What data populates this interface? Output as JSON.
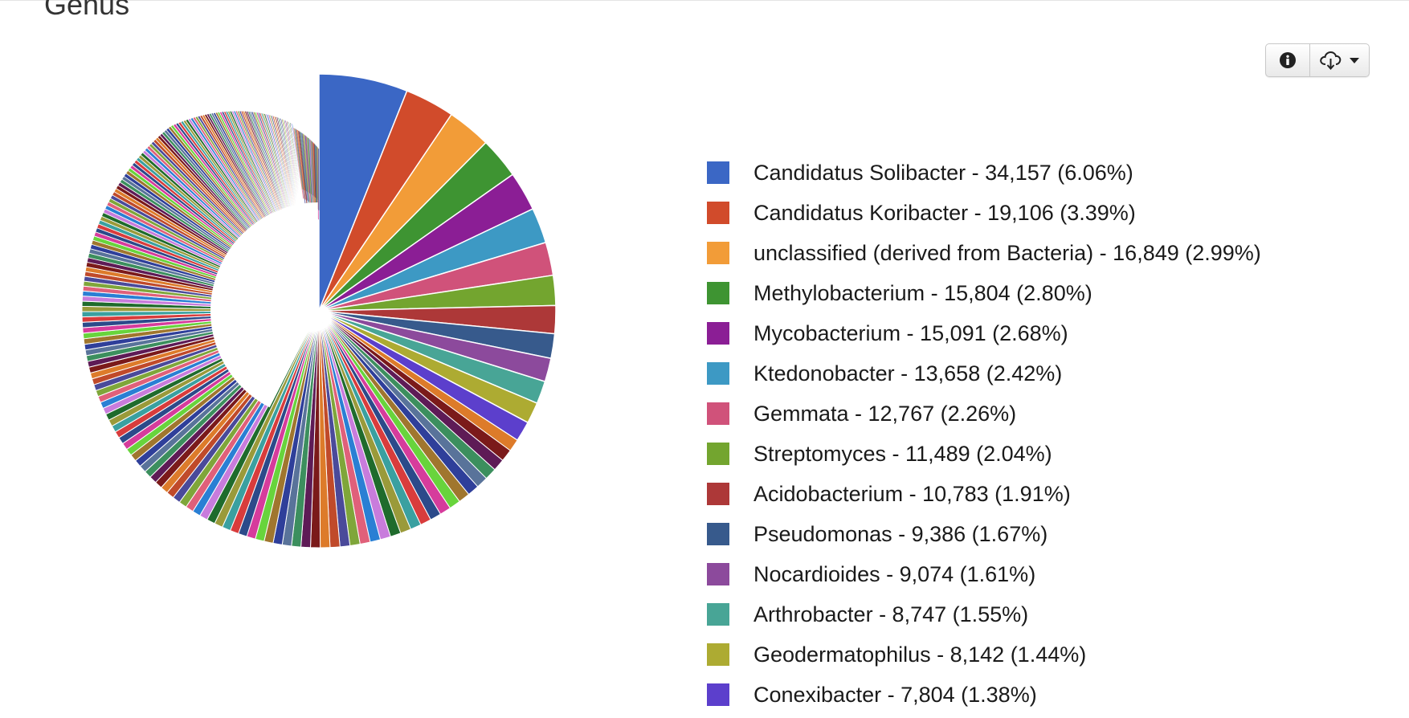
{
  "section": {
    "title": "Genus"
  },
  "toolbar": {
    "info_icon": "info-circle-icon",
    "download_icon": "cloud-download-icon",
    "caret_icon": "caret-down-icon"
  },
  "chart_data": {
    "type": "pie",
    "title": "Genus",
    "legend_position": "right",
    "start_angle": "12 o'clock, clockwise",
    "slices": [
      {
        "label": "Candidatus Solibacter - 34,157 (6.06%)",
        "name": "Candidatus Solibacter",
        "value": 34157,
        "percent": 6.06,
        "color": "#3b67c5"
      },
      {
        "label": "Candidatus Koribacter - 19,106 (3.39%)",
        "name": "Candidatus Koribacter",
        "value": 19106,
        "percent": 3.39,
        "color": "#d14b2b"
      },
      {
        "label": "unclassified (derived from Bacteria) - 16,849 (2.99%)",
        "name": "unclassified (derived from Bacteria)",
        "value": 16849,
        "percent": 2.99,
        "color": "#f29c38"
      },
      {
        "label": "Methylobacterium - 15,804 (2.80%)",
        "name": "Methylobacterium",
        "value": 15804,
        "percent": 2.8,
        "color": "#3e9432"
      },
      {
        "label": "Mycobacterium - 15,091 (2.68%)",
        "name": "Mycobacterium",
        "value": 15091,
        "percent": 2.68,
        "color": "#8b1e95"
      },
      {
        "label": "Ktedonobacter - 13,658 (2.42%)",
        "name": "Ktedonobacter",
        "value": 13658,
        "percent": 2.42,
        "color": "#3d99c4"
      },
      {
        "label": "Gemmata - 12,767 (2.26%)",
        "name": "Gemmata",
        "value": 12767,
        "percent": 2.26,
        "color": "#d0527a"
      },
      {
        "label": "Streptomyces - 11,489 (2.04%)",
        "name": "Streptomyces",
        "value": 11489,
        "percent": 2.04,
        "color": "#73a52f"
      },
      {
        "label": "Acidobacterium - 10,783 (1.91%)",
        "name": "Acidobacterium",
        "value": 10783,
        "percent": 1.91,
        "color": "#ad3838"
      },
      {
        "label": "Pseudomonas - 9,386 (1.67%)",
        "name": "Pseudomonas",
        "value": 9386,
        "percent": 1.67,
        "color": "#375a8c"
      },
      {
        "label": "Nocardioides - 9,074 (1.61%)",
        "name": "Nocardioides",
        "value": 9074,
        "percent": 1.61,
        "color": "#8c4a9c"
      },
      {
        "label": "Arthrobacter - 8,747 (1.55%)",
        "name": "Arthrobacter",
        "value": 8747,
        "percent": 1.55,
        "color": "#48a596"
      },
      {
        "label": "Geodermatophilus - 8,142 (1.44%)",
        "name": "Geodermatophilus",
        "value": 8142,
        "percent": 1.44,
        "color": "#adab32"
      },
      {
        "label": "Conexibacter - 7,804 (1.38%)",
        "name": "Conexibacter",
        "value": 7804,
        "percent": 1.38,
        "color": "#5c3fcc"
      }
    ],
    "other_slices_palette": [
      "#dd7b2a",
      "#7b1a1a",
      "#5e1b56",
      "#3c8f5e",
      "#59739a",
      "#2f3f9a",
      "#a0762e",
      "#68d43c",
      "#d63c9c",
      "#2c4a8a",
      "#d83c3c",
      "#3aa0a0",
      "#9a9a3a",
      "#1f6b2c",
      "#c87cdc",
      "#2a7fd4",
      "#e0607a",
      "#7fa63a",
      "#4a4a9a",
      "#c04a2a"
    ]
  }
}
